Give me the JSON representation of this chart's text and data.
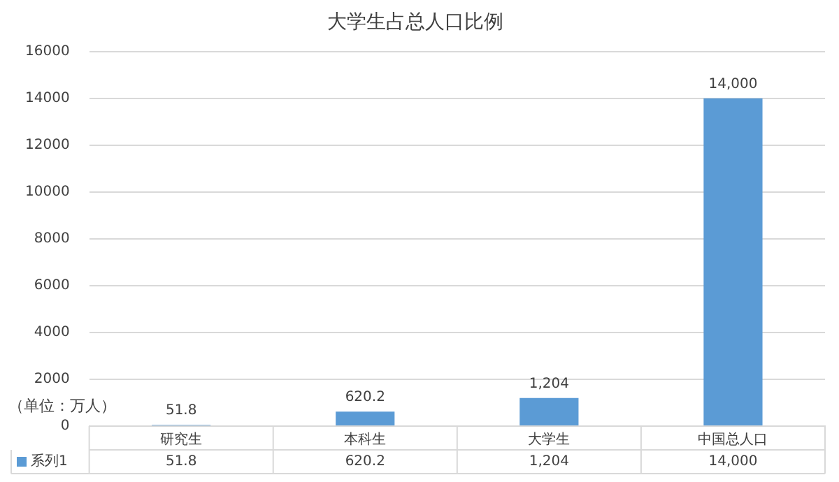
{
  "chart_data": {
    "type": "bar",
    "title": "大学生占总人口比例",
    "categories": [
      "研究生",
      "本科生",
      "大学生",
      "中国总人口"
    ],
    "series": [
      {
        "name": "系列1",
        "color": "#5b9bd5",
        "values": [
          51.8,
          620.2,
          1204,
          14000
        ],
        "value_labels": [
          "51.8",
          "620.2",
          "1,204",
          "14,000"
        ]
      }
    ],
    "ylim": [
      0,
      16000
    ],
    "yticks": [
      0,
      2000,
      4000,
      6000,
      8000,
      10000,
      12000,
      14000,
      16000
    ],
    "grid": "y",
    "annotations": [
      "（单位：万人）"
    ]
  }
}
